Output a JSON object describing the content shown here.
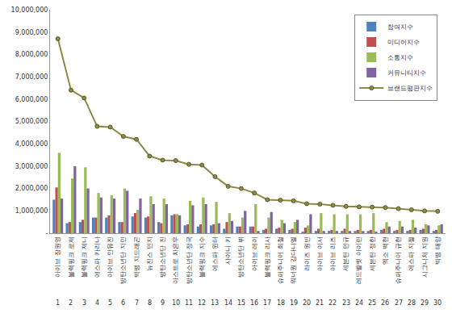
{
  "chart_data": {
    "type": "bar",
    "categories": [
      "아이브 장원영",
      "블랙핑크 로제",
      "블랙핑크 제니",
      "에스파 카리나",
      "아이브 안유진",
      "방탄소년단 지민",
      "빅뱅 지드래곤",
      "뉴진스 민지",
      "방탄소년단 진",
      "아스트로 차은우",
      "방탄소년단 정국",
      "블랙핑크 지수",
      "에스파 윈터",
      "샤이니 키",
      "방탄소년단 뷔",
      "아이브 레이",
      "블랙핑크 리사",
      "슈퍼주니어 희철",
      "워너원 강다니엘",
      "라이즈 원빈",
      "아이브 이서",
      "아이브 리즈",
      "세븐틴 민규",
      "레드벨벳 아이린",
      "세븐틴 정한",
      "엑소 백현",
      "슈퍼주니어 규현",
      "에스파 지젤",
      "시그니처 지원",
      "빅뱅 태양"
    ],
    "ranks": [
      1,
      2,
      3,
      4,
      5,
      6,
      7,
      8,
      9,
      10,
      11,
      12,
      13,
      14,
      15,
      16,
      17,
      18,
      19,
      20,
      21,
      22,
      23,
      24,
      25,
      26,
      27,
      28,
      29,
      30
    ],
    "series": [
      {
        "name": "참여지수",
        "type": "bar",
        "color": "#4f81bd",
        "values": [
          1500000,
          450000,
          500000,
          700000,
          700000,
          500000,
          750000,
          700000,
          500000,
          800000,
          350000,
          300000,
          350000,
          200000,
          300000,
          300000,
          150000,
          200000,
          150000,
          50000,
          100000,
          100000,
          100000,
          100000,
          100000,
          150000,
          100000,
          100000,
          150000,
          100000
        ]
      },
      {
        "name": "미디어지수",
        "type": "bar",
        "color": "#c0504d",
        "values": [
          2050000,
          500000,
          600000,
          700000,
          800000,
          500000,
          900000,
          750000,
          450000,
          850000,
          400000,
          400000,
          400000,
          500000,
          300000,
          300000,
          200000,
          250000,
          200000,
          250000,
          200000,
          150000,
          200000,
          150000,
          150000,
          200000,
          150000,
          150000,
          200000,
          150000
        ]
      },
      {
        "name": "소통지수",
        "type": "bar",
        "color": "#9bbb59",
        "values": [
          3600000,
          2450000,
          2950000,
          1800000,
          1700000,
          2000000,
          1050000,
          1650000,
          1550000,
          850000,
          1450000,
          1600000,
          1400000,
          900000,
          700000,
          1300000,
          700000,
          600000,
          500000,
          350000,
          900000,
          850000,
          850000,
          850000,
          900000,
          500000,
          550000,
          600000,
          400000,
          350000
        ]
      },
      {
        "name": "커뮤니티지수",
        "type": "bar",
        "color": "#8064a2",
        "values": [
          1550000,
          3000000,
          2000000,
          1600000,
          1550000,
          1900000,
          1550000,
          1300000,
          1300000,
          800000,
          1250000,
          1300000,
          450000,
          550000,
          1000000,
          100000,
          950000,
          450000,
          600000,
          850000,
          100000,
          100000,
          100000,
          100000,
          50000,
          300000,
          300000,
          250000,
          350000,
          400000
        ]
      },
      {
        "name": "브랜드평판지수",
        "type": "line",
        "color": "#8c8a45",
        "marker": "circle",
        "values": [
          8700000,
          6400000,
          6050000,
          4780000,
          4750000,
          4330000,
          4200000,
          3450000,
          3270000,
          3250000,
          3080000,
          3050000,
          2530000,
          2100000,
          2000000,
          1800000,
          1500000,
          1480000,
          1450000,
          1320000,
          1300000,
          1250000,
          1200000,
          1180000,
          1170000,
          1150000,
          1100000,
          1050000,
          1000000,
          980000
        ]
      }
    ],
    "ylim": [
      0,
      10000000
    ],
    "yticks": [
      {
        "value": 0,
        "label": "-"
      },
      {
        "value": 1000000,
        "label": "1,000,000"
      },
      {
        "value": 2000000,
        "label": "2,000,000"
      },
      {
        "value": 3000000,
        "label": "3,000,000"
      },
      {
        "value": 4000000,
        "label": "4,000,000"
      },
      {
        "value": 5000000,
        "label": "5,000,000"
      },
      {
        "value": 6000000,
        "label": "6,000,000"
      },
      {
        "value": 7000000,
        "label": "7,000,000"
      },
      {
        "value": 8000000,
        "label": "8,000,000"
      },
      {
        "value": 9000000,
        "label": "9,000,000"
      },
      {
        "value": 10000000,
        "label": "10,000,000"
      }
    ],
    "grid": false,
    "legend": "upper right"
  }
}
